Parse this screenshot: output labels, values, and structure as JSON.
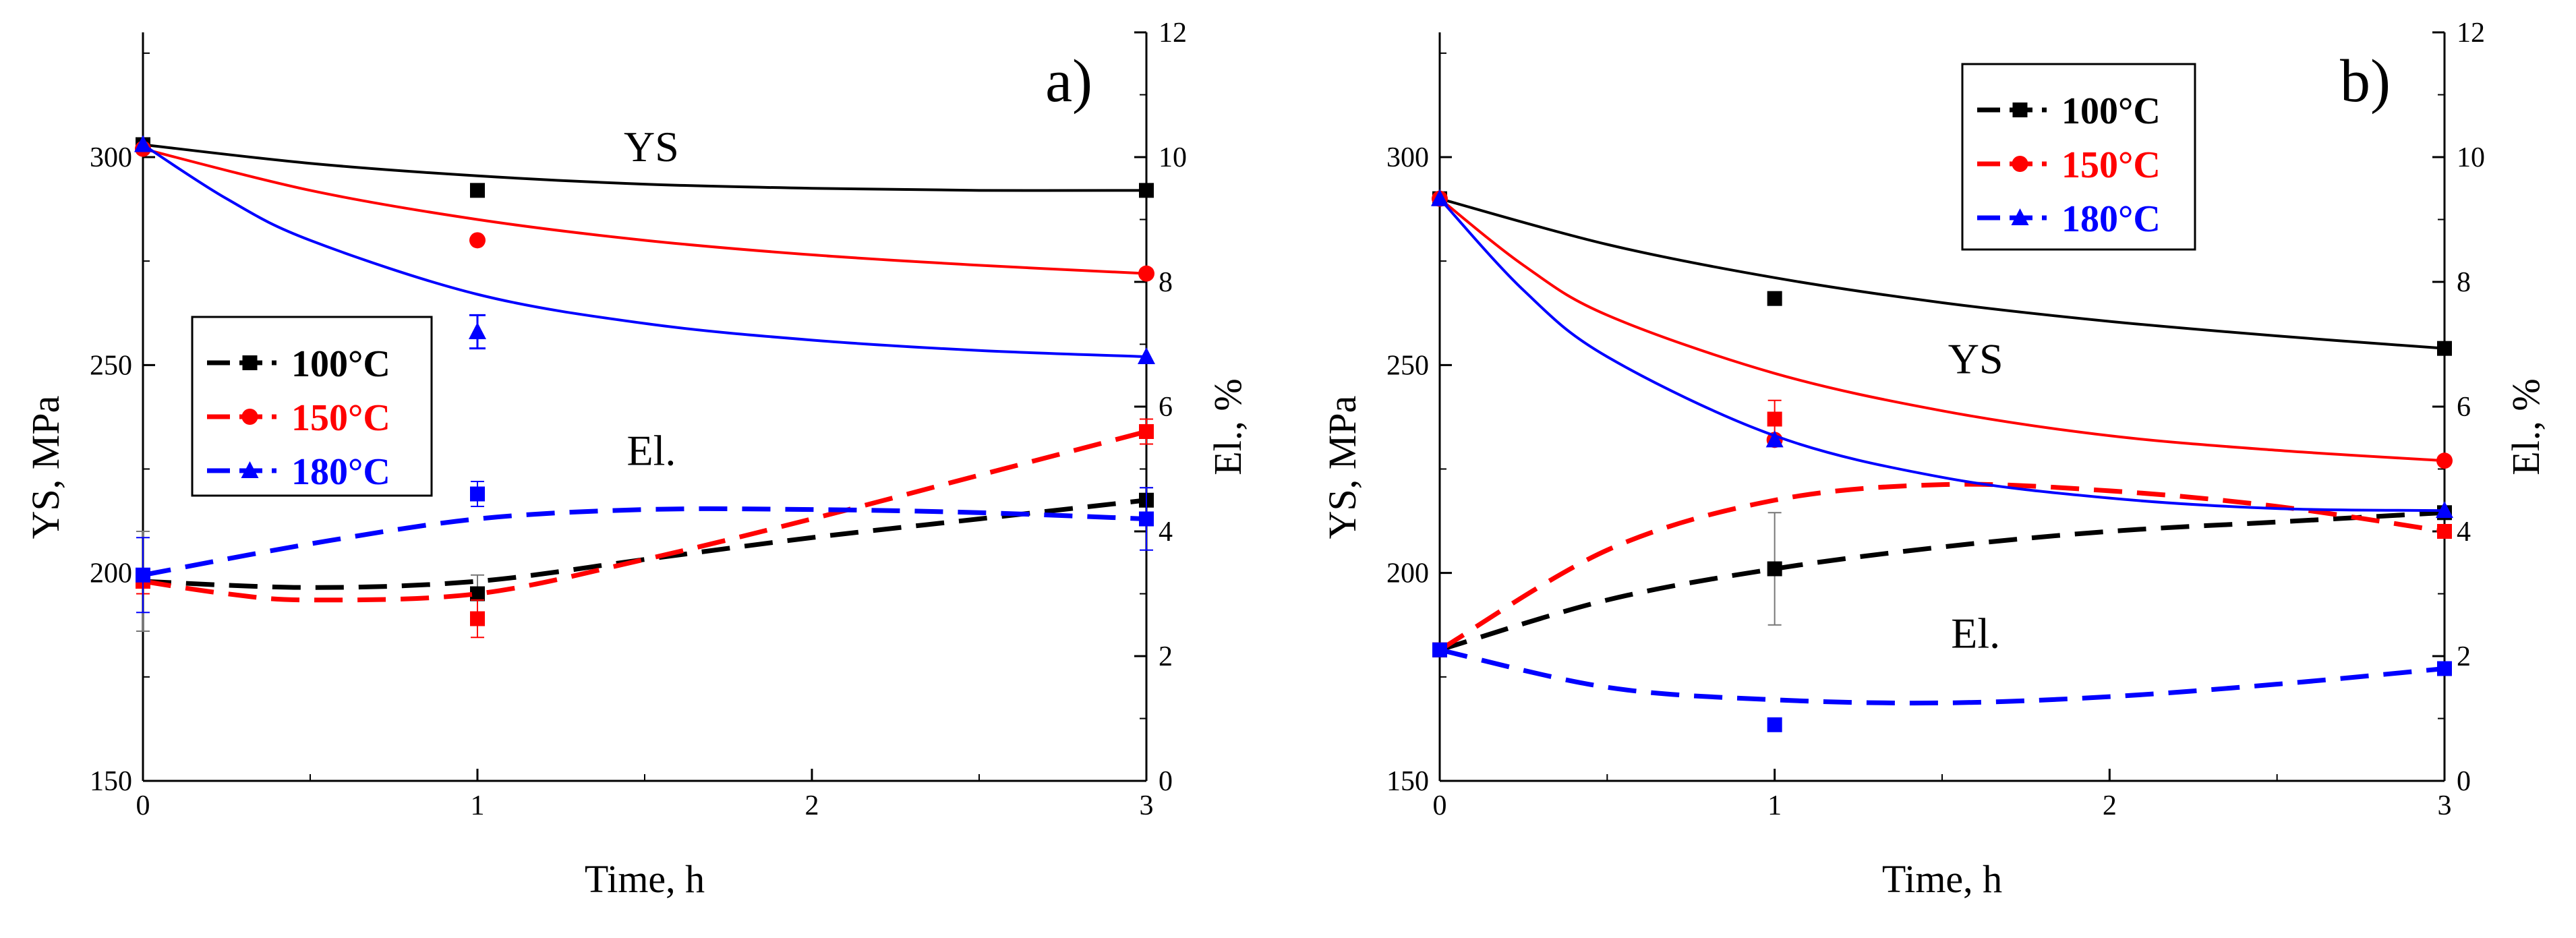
{
  "colors": {
    "100": "#000000",
    "150": "#ff0000",
    "180": "#0000ff"
  },
  "chart_data": [
    {
      "type": "line",
      "panel_label": "a)",
      "xlabel": "Time, h",
      "ylabel_left": "YS, MPa",
      "ylabel_right": "El., %",
      "xlim": [
        0,
        3
      ],
      "ylim_left": [
        150,
        330
      ],
      "ylim_right": [
        0,
        12
      ],
      "x_ticks": [
        "0",
        "1",
        "2",
        "3"
      ],
      "y_ticks_left": [
        "150",
        "200",
        "250",
        "300"
      ],
      "y_ticks_right": [
        "0",
        "2",
        "4",
        "6",
        "8",
        "10",
        "12"
      ],
      "annotations": [
        {
          "text": "YS",
          "x": 1.52,
          "y": 299
        },
        {
          "text": "El.",
          "x": 1.52,
          "y": 226
        }
      ],
      "legend": [
        "100°C",
        "150°C",
        "180°C"
      ],
      "legend_position": "middle-left",
      "series": [
        {
          "name": "100°C",
          "color": "#000000",
          "marker": "square",
          "ys_points": [
            [
              0,
              303
            ],
            [
              1,
              292
            ],
            [
              3,
              292
            ]
          ],
          "ys_fit": [
            [
              0,
              303
            ],
            [
              0.5,
              298.5
            ],
            [
              1,
              295.5
            ],
            [
              1.5,
              293.5
            ],
            [
              2,
              292.5
            ],
            [
              2.5,
              292
            ],
            [
              3,
              292
            ]
          ],
          "el_points": [
            [
              0,
              3.2
            ],
            [
              1,
              3.0
            ],
            [
              3,
              4.5
            ]
          ],
          "el_fit": [
            [
              0,
              3.2
            ],
            [
              0.5,
              3.1
            ],
            [
              1,
              3.2
            ],
            [
              1.5,
              3.55
            ],
            [
              2,
              3.9
            ],
            [
              2.5,
              4.2
            ],
            [
              3,
              4.5
            ]
          ],
          "el_errors": [
            0.8,
            0.3,
            0.2
          ]
        },
        {
          "name": "150°C",
          "color": "#ff0000",
          "marker": "circle",
          "ys_points": [
            [
              0,
              302
            ],
            [
              1,
              280
            ],
            [
              3,
              272
            ]
          ],
          "ys_fit": [
            [
              0,
              302
            ],
            [
              0.5,
              292
            ],
            [
              1,
              285
            ],
            [
              1.5,
              280
            ],
            [
              2,
              276.5
            ],
            [
              2.5,
              274
            ],
            [
              3,
              272
            ]
          ],
          "el_points": [
            [
              0,
              3.2
            ],
            [
              1,
              2.6
            ],
            [
              3,
              5.6
            ]
          ],
          "el_fit": [
            [
              0,
              3.2
            ],
            [
              0.25,
              3.0
            ],
            [
              0.5,
              2.9
            ],
            [
              1,
              3.0
            ],
            [
              1.5,
              3.55
            ],
            [
              2,
              4.2
            ],
            [
              2.5,
              4.9
            ],
            [
              3,
              5.6
            ]
          ],
          "el_errors": [
            0.2,
            0.3,
            0.2
          ]
        },
        {
          "name": "180°C",
          "color": "#0000ff",
          "marker": "triangle",
          "ys_points": [
            [
              0,
              303
            ],
            [
              1,
              258
            ],
            [
              3,
              252
            ]
          ],
          "ys_fit": [
            [
              0,
              303
            ],
            [
              0.25,
              290
            ],
            [
              0.5,
              280
            ],
            [
              1,
              267
            ],
            [
              1.5,
              260
            ],
            [
              2,
              256
            ],
            [
              2.5,
              253.5
            ],
            [
              3,
              252
            ]
          ],
          "el_points": [
            [
              0,
              3.3
            ],
            [
              1,
              4.6
            ],
            [
              3,
              4.2
            ]
          ],
          "el_fit": [
            [
              0,
              3.3
            ],
            [
              0.5,
              3.8
            ],
            [
              1,
              4.2
            ],
            [
              1.5,
              4.35
            ],
            [
              2,
              4.35
            ],
            [
              2.5,
              4.3
            ],
            [
              3,
              4.2
            ]
          ],
          "el_errors": [
            0.6,
            0.2,
            0.5
          ],
          "ys_errors": [
            0,
            4,
            0
          ]
        }
      ]
    },
    {
      "type": "line",
      "panel_label": "b)",
      "xlabel": "Time, h",
      "ylabel_left": "YS, MPa",
      "ylabel_right": "El., %",
      "xlim": [
        0,
        3
      ],
      "ylim_left": [
        150,
        330
      ],
      "ylim_right": [
        0,
        12
      ],
      "x_ticks": [
        "0",
        "1",
        "2",
        "3"
      ],
      "y_ticks_left": [
        "150",
        "200",
        "250",
        "300"
      ],
      "y_ticks_right": [
        "0",
        "2",
        "4",
        "6",
        "8",
        "10",
        "12"
      ],
      "annotations": [
        {
          "text": "YS",
          "x": 1.6,
          "y": 248
        },
        {
          "text": "El.",
          "x": 1.6,
          "y": 182
        }
      ],
      "legend": [
        "100°C",
        "150°C",
        "180°C"
      ],
      "legend_position": "top-center",
      "series": [
        {
          "name": "100°C",
          "color": "#000000",
          "marker": "square",
          "ys_points": [
            [
              0,
              290
            ],
            [
              1,
              266
            ],
            [
              3,
              254
            ]
          ],
          "ys_fit": [
            [
              0,
              290
            ],
            [
              0.5,
              279
            ],
            [
              1,
              271
            ],
            [
              1.5,
              265
            ],
            [
              2,
              260.5
            ],
            [
              2.5,
              257
            ],
            [
              3,
              254
            ]
          ],
          "el_points": [
            [
              0,
              2.1
            ],
            [
              1,
              3.4
            ],
            [
              3,
              4.3
            ]
          ],
          "el_fit": [
            [
              0,
              2.1
            ],
            [
              0.5,
              2.9
            ],
            [
              1,
              3.4
            ],
            [
              1.5,
              3.75
            ],
            [
              2,
              4.0
            ],
            [
              2.5,
              4.15
            ],
            [
              3,
              4.3
            ]
          ],
          "el_errors": [
            0,
            0.9,
            0
          ]
        },
        {
          "name": "150°C",
          "color": "#ff0000",
          "marker": "circle",
          "ys_points": [
            [
              0,
              290
            ],
            [
              1,
              232
            ],
            [
              3,
              227
            ]
          ],
          "ys_fit": [
            [
              0,
              290
            ],
            [
              0.25,
              274
            ],
            [
              0.5,
              262
            ],
            [
              1,
              248
            ],
            [
              1.5,
              239
            ],
            [
              2,
              233
            ],
            [
              2.5,
              229.5
            ],
            [
              3,
              227
            ]
          ],
          "el_points": [
            [
              0,
              2.1
            ],
            [
              1,
              5.8
            ],
            [
              3,
              4.0
            ]
          ],
          "el_fit": [
            [
              0,
              2.1
            ],
            [
              0.5,
              3.7
            ],
            [
              1,
              4.5
            ],
            [
              1.5,
              4.75
            ],
            [
              2,
              4.65
            ],
            [
              2.5,
              4.4
            ],
            [
              3,
              4.0
            ]
          ],
          "el_errors": [
            0,
            0.3,
            0
          ]
        },
        {
          "name": "180°C",
          "color": "#0000ff",
          "marker": "triangle",
          "ys_points": [
            [
              0,
              290
            ],
            [
              1,
              232
            ],
            [
              3,
              215
            ]
          ],
          "ys_fit": [
            [
              0,
              290
            ],
            [
              0.25,
              268
            ],
            [
              0.5,
              252
            ],
            [
              1,
              233
            ],
            [
              1.5,
              223
            ],
            [
              2,
              218
            ],
            [
              2.5,
              215.5
            ],
            [
              3,
              215
            ]
          ],
          "el_points": [
            [
              0,
              2.1
            ],
            [
              1,
              0.9
            ],
            [
              3,
              1.8
            ]
          ],
          "el_fit": [
            [
              0,
              2.1
            ],
            [
              0.5,
              1.5
            ],
            [
              1,
              1.3
            ],
            [
              1.5,
              1.25
            ],
            [
              2,
              1.35
            ],
            [
              2.5,
              1.55
            ],
            [
              3,
              1.8
            ]
          ],
          "el_errors": [
            0,
            0,
            0
          ]
        }
      ]
    }
  ]
}
